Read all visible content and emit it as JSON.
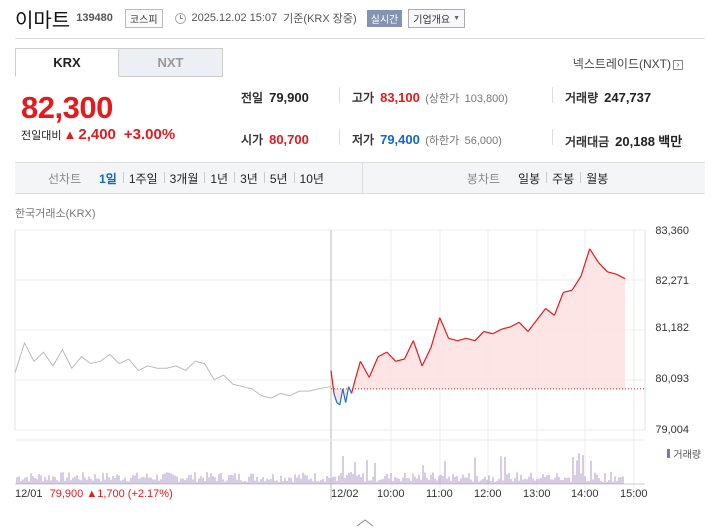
{
  "header": {
    "name": "이마트",
    "code": "139480",
    "market": "코스피",
    "datetime": "2025.12.02 15:07",
    "basis": "기준(KRX 장중)",
    "realtime": "실시간",
    "company_info": "기업개요"
  },
  "tabs": [
    {
      "label": "KRX",
      "active": true
    },
    {
      "label": "NXT",
      "active": false
    }
  ],
  "nxt_link": "넥스트레이드(NXT)",
  "price": {
    "current": "82,300",
    "change_label": "전일대비",
    "change_amount": "2,400",
    "change_pct": "+3.00%"
  },
  "stats": {
    "prev_close": {
      "label": "전일",
      "value": "79,900"
    },
    "high": {
      "label": "고가",
      "value": "83,100",
      "limit_label": "(상한가",
      "limit_value": "103,800)"
    },
    "volume": {
      "label": "거래량",
      "value": "247,737"
    },
    "open": {
      "label": "시가",
      "value": "80,700"
    },
    "low": {
      "label": "저가",
      "value": "79,400",
      "limit_label": "(하한가",
      "limit_value": "56,000)"
    },
    "turnover": {
      "label": "거래대금",
      "value": "20,188",
      "unit": "백만"
    }
  },
  "period_bar": {
    "line_label": "선차트",
    "line_options": [
      "1일",
      "1주일",
      "3개월",
      "1년",
      "3년",
      "5년",
      "10년"
    ],
    "selected": "1일",
    "candle_label": "봉차트",
    "candle_options": [
      "일봉",
      "주봉",
      "월봉"
    ]
  },
  "chart_data": {
    "type": "line",
    "source": "한국거래소(KRX)",
    "ylim": [
      79004,
      83360
    ],
    "yticks": [
      "83,360",
      "82,271",
      "81,182",
      "80,093",
      "79,004"
    ],
    "xticks": [
      "12/02",
      "10:00",
      "11:00",
      "12:00",
      "13:00",
      "14:00",
      "15:00"
    ],
    "prev_close": 79900,
    "series": [
      {
        "name": "12/01",
        "color": "#bbbbbb",
        "x": [
          0,
          0.03,
          0.06,
          0.09,
          0.12,
          0.15,
          0.18,
          0.21,
          0.24,
          0.27,
          0.3,
          0.33,
          0.36,
          0.39,
          0.42,
          0.45,
          0.48,
          0.51,
          0.54,
          0.57,
          0.6,
          0.63,
          0.66,
          0.69,
          0.72,
          0.75,
          0.78,
          0.81,
          0.84,
          0.87,
          0.9,
          0.93,
          0.96,
          1
        ],
        "values": [
          80250,
          80900,
          80500,
          80700,
          80400,
          80750,
          80350,
          80600,
          80450,
          80500,
          80650,
          80450,
          80550,
          80300,
          80400,
          80350,
          80350,
          80400,
          80300,
          80500,
          80450,
          80100,
          80200,
          80000,
          79950,
          79900,
          79750,
          79700,
          79800,
          79750,
          79850,
          79850,
          79900,
          79950
        ]
      },
      {
        "name": "12/02",
        "color_up": "#e6191d",
        "color_down": "#1c6fd6",
        "x": [
          0,
          0.01,
          0.02,
          0.03,
          0.04,
          0.05,
          0.06,
          0.07,
          0.08,
          0.1,
          0.13,
          0.16,
          0.19,
          0.22,
          0.25,
          0.28,
          0.31,
          0.34,
          0.37,
          0.4,
          0.43,
          0.46,
          0.49,
          0.52,
          0.55,
          0.58,
          0.61,
          0.64,
          0.67,
          0.7,
          0.73,
          0.76,
          0.79,
          0.82,
          0.85,
          0.88,
          0.91,
          0.94,
          0.97,
          1
        ],
        "values": [
          80300,
          79800,
          79600,
          79550,
          79900,
          79600,
          79950,
          79800,
          80050,
          80500,
          80150,
          80600,
          80700,
          80500,
          80550,
          80950,
          80400,
          80800,
          81450,
          81000,
          80950,
          81000,
          80950,
          81150,
          81100,
          81200,
          81250,
          81350,
          81150,
          81400,
          81650,
          81500,
          82000,
          82050,
          82350,
          82950,
          82650,
          82450,
          82400,
          82300
        ]
      }
    ],
    "volume_label": "거래량"
  },
  "prev_day": {
    "date": "12/01",
    "close": "79,900",
    "change": "▲1,700",
    "pct": "(+2.17%)"
  }
}
